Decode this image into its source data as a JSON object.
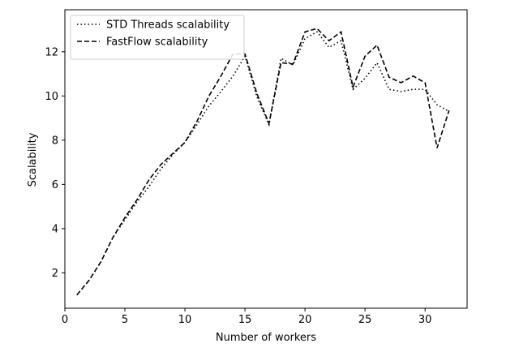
{
  "chart_data": {
    "type": "line",
    "title": "",
    "xlabel": "Number of workers",
    "ylabel": "Scalability",
    "xlim": [
      0,
      33.5
    ],
    "ylim": [
      0.4,
      13.9
    ],
    "xticks": [
      0,
      5,
      10,
      15,
      20,
      25,
      30
    ],
    "yticks": [
      2,
      4,
      6,
      8,
      10,
      12
    ],
    "grid": false,
    "legend_position": "top-left",
    "x": [
      1,
      2,
      3,
      4,
      5,
      6,
      7,
      8,
      9,
      10,
      11,
      12,
      13,
      14,
      15,
      16,
      17,
      18,
      19,
      20,
      21,
      22,
      23,
      24,
      25,
      26,
      27,
      28,
      29,
      30,
      31,
      32
    ],
    "series": [
      {
        "name": "STD Threads scalability",
        "style": "dotted",
        "color": "#000000",
        "values": [
          1.0,
          1.65,
          2.5,
          3.6,
          4.4,
          5.2,
          5.9,
          6.7,
          7.35,
          7.9,
          8.7,
          9.55,
          10.2,
          10.9,
          11.8,
          9.95,
          8.7,
          11.7,
          11.4,
          12.6,
          12.9,
          12.2,
          12.5,
          10.3,
          10.8,
          11.5,
          10.3,
          10.2,
          10.3,
          10.3,
          9.6,
          9.3
        ]
      },
      {
        "name": "FastFlow scalability",
        "style": "dashed",
        "color": "#000000",
        "values": [
          1.0,
          1.65,
          2.5,
          3.6,
          4.5,
          5.3,
          6.2,
          6.9,
          7.4,
          7.9,
          8.85,
          10.0,
          10.9,
          11.9,
          11.9,
          10.1,
          8.75,
          11.5,
          11.45,
          12.9,
          13.05,
          12.5,
          12.9,
          10.4,
          11.8,
          12.3,
          10.85,
          10.6,
          10.9,
          10.6,
          7.65,
          9.35
        ]
      }
    ]
  }
}
